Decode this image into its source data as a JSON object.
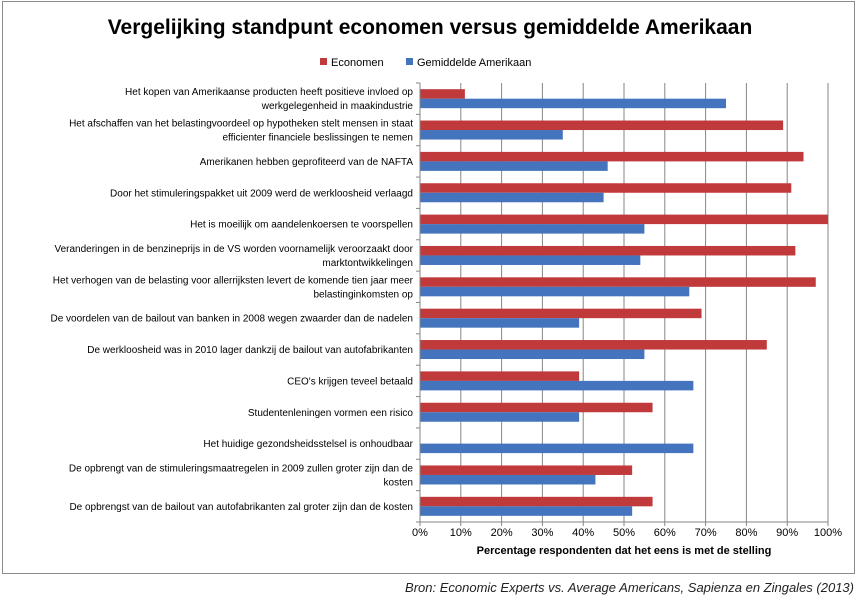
{
  "source_note": "Bron: Economic Experts vs. Average Americans, Sapienza en Zingales (2013)",
  "colors": {
    "economists": "#c0393b",
    "americans": "#4474bd"
  },
  "chart_data": {
    "type": "bar",
    "orientation": "horizontal",
    "title": "Vergelijking standpunt economen versus gemiddelde Amerikaan",
    "xlabel": "Percentage respondenten dat het eens is met de stelling",
    "ylabel": "",
    "xlim": [
      0,
      100
    ],
    "x_ticks": [
      "0%",
      "10%",
      "20%",
      "30%",
      "40%",
      "50%",
      "60%",
      "70%",
      "80%",
      "90%",
      "100%"
    ],
    "grid": "vertical",
    "legend_position": "top",
    "categories": [
      [
        "Het kopen van Amerikaanse producten heeft positieve invloed op",
        "werkgelegenheid in maakindustrie"
      ],
      [
        "Het afschaffen van het belastingvoordeel op hypotheken  stelt mensen in staat",
        "efficienter financiele beslissingen te nemen"
      ],
      [
        "Amerikanen hebben geprofiteerd van de NAFTA"
      ],
      [
        "Door het stimuleringspakket uit 2009 werd de werkloosheid verlaagd"
      ],
      [
        "Het is moeilijk om aandelenkoersen te voorspellen"
      ],
      [
        "Veranderingen in de benzineprijs in de VS worden voornamelijk veroorzaakt door",
        "marktontwikkelingen"
      ],
      [
        "Het verhogen van de belasting voor allerrijksten levert de komende tien jaar meer",
        "belastinginkomsten op"
      ],
      [
        "De voordelen van de bailout van banken in 2008 wegen zwaarder dan de nadelen"
      ],
      [
        "De werkloosheid was in 2010 lager dankzij de bailout van autofabrikanten"
      ],
      [
        "CEO's krijgen teveel betaald"
      ],
      [
        "Studentenleningen vormen een risico"
      ],
      [
        "Het huidige gezondsheidsstelsel is onhoudbaar"
      ],
      [
        "De opbrengt van de stimuleringsmaatregelen in 2009 zullen groter zijn dan de",
        "kosten"
      ],
      [
        "De opbrengst van de bailout van autofabrikanten zal groter zijn dan de kosten"
      ]
    ],
    "series": [
      {
        "name": "Economen",
        "color": "#c0393b",
        "values": [
          11,
          89,
          94,
          91,
          100,
          92,
          97,
          69,
          85,
          39,
          57,
          0,
          52,
          57
        ]
      },
      {
        "name": "Gemiddelde Amerikaan",
        "color": "#4474bd",
        "values": [
          75,
          35,
          46,
          45,
          55,
          54,
          66,
          39,
          55,
          67,
          39,
          67,
          43,
          52
        ]
      }
    ]
  }
}
